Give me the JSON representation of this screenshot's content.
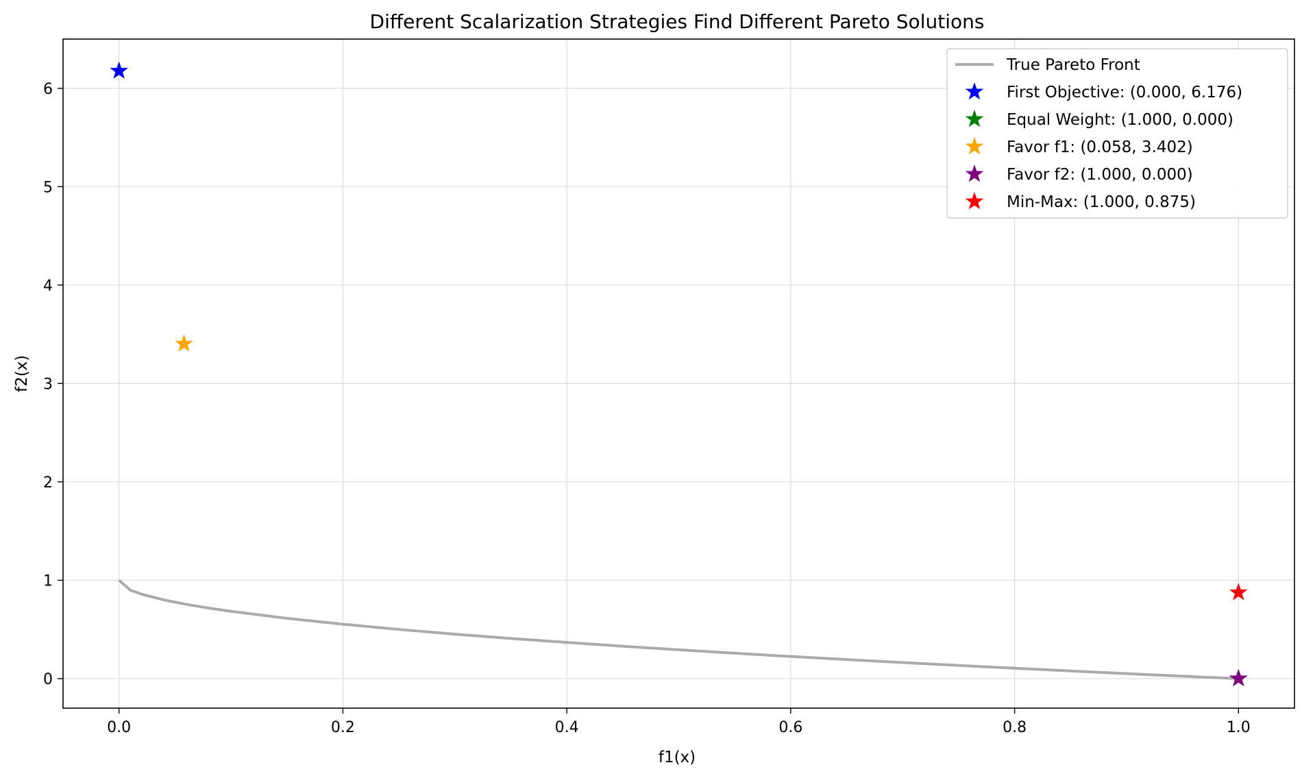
{
  "chart_data": {
    "type": "scatter",
    "title": "Different Scalarization Strategies Find Different Pareto Solutions",
    "xlabel": "f1(x)",
    "ylabel": "f2(x)",
    "xlim": [
      -0.05,
      1.05
    ],
    "ylim": [
      -0.3,
      6.5
    ],
    "xticks": [
      0.0,
      0.2,
      0.4,
      0.6,
      0.8,
      1.0
    ],
    "xtick_labels": [
      "0.0",
      "0.2",
      "0.4",
      "0.6",
      "0.8",
      "1.0"
    ],
    "yticks": [
      0,
      1,
      2,
      3,
      4,
      5,
      6
    ],
    "ytick_labels": [
      "0",
      "1",
      "2",
      "3",
      "4",
      "5",
      "6"
    ],
    "grid": true,
    "legend_position": "top-right",
    "line": {
      "name": "True Pareto Front",
      "color": "#aaaaaa",
      "x": [
        0,
        0.01,
        0.02,
        0.04,
        0.06,
        0.08,
        0.1,
        0.15,
        0.2,
        0.25,
        0.3,
        0.35,
        0.4,
        0.45,
        0.5,
        0.55,
        0.6,
        0.65,
        0.7,
        0.75,
        0.8,
        0.85,
        0.9,
        0.95,
        1.0
      ],
      "y": [
        1.0,
        0.9,
        0.859,
        0.8,
        0.755,
        0.717,
        0.684,
        0.613,
        0.553,
        0.5,
        0.452,
        0.408,
        0.368,
        0.329,
        0.293,
        0.258,
        0.225,
        0.194,
        0.163,
        0.134,
        0.106,
        0.078,
        0.051,
        0.025,
        0.0
      ]
    },
    "series": [
      {
        "name": "First Objective: (0.000, 6.176)",
        "color": "#0000ff",
        "x": 0.0,
        "y": 6.176
      },
      {
        "name": "Equal Weight: (1.000, 0.000)",
        "color": "#008000",
        "x": 1.0,
        "y": 0.0
      },
      {
        "name": "Favor f1: (0.058, 3.402)",
        "color": "#ffa500",
        "x": 0.058,
        "y": 3.402
      },
      {
        "name": "Favor f2: (1.000, 0.000)",
        "color": "#800080",
        "x": 1.0,
        "y": 0.0
      },
      {
        "name": "Min-Max: (1.000, 0.875)",
        "color": "#ff0000",
        "x": 1.0,
        "y": 0.875
      }
    ]
  }
}
